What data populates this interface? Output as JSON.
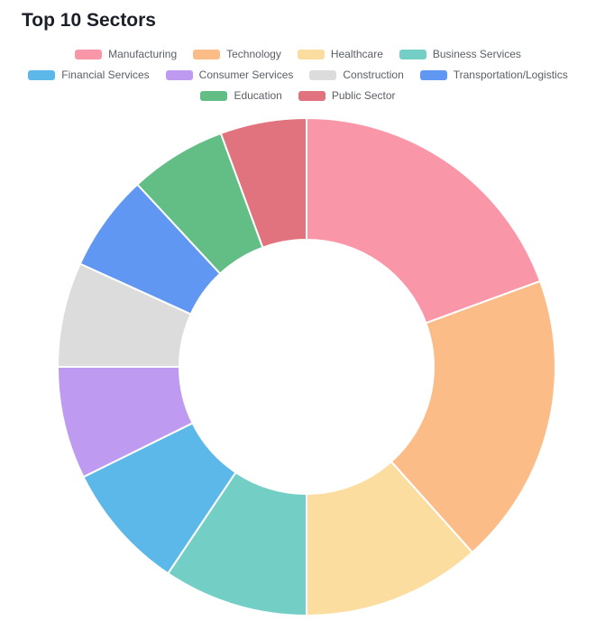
{
  "page_title": "Top 10 Sectors",
  "chart_data": {
    "type": "pie",
    "variant": "donut",
    "title": "Top 10 Sectors",
    "legend_position": "top",
    "start_angle_deg": 0,
    "direction": "clockwise",
    "inner_radius_ratio": 0.51,
    "categories": [
      "Manufacturing",
      "Technology",
      "Healthcare",
      "Business Services",
      "Financial Services",
      "Consumer Services",
      "Construction",
      "Transportation/Logistics",
      "Education",
      "Public Sector"
    ],
    "values": [
      19.4,
      19.0,
      11.6,
      9.4,
      8.3,
      7.3,
      6.8,
      6.3,
      6.3,
      5.6
    ],
    "values_note": "percent of total, estimated from arc angles (no numeric data labels are shown in the chart)",
    "colors": [
      "#F997A9",
      "#FBBC88",
      "#FBDE9F",
      "#73CFC6",
      "#5CB8E8",
      "#BE9AF1",
      "#DCDCDC",
      "#6097F2",
      "#62BE85",
      "#E0737E"
    ],
    "slice_border_color": "#FFFFFF",
    "hole_fill": "#FFFFFF"
  },
  "style": {
    "background": "#FFFFFF",
    "title_color": "#1B1F27",
    "legend_text_color": "#5A5F66"
  }
}
